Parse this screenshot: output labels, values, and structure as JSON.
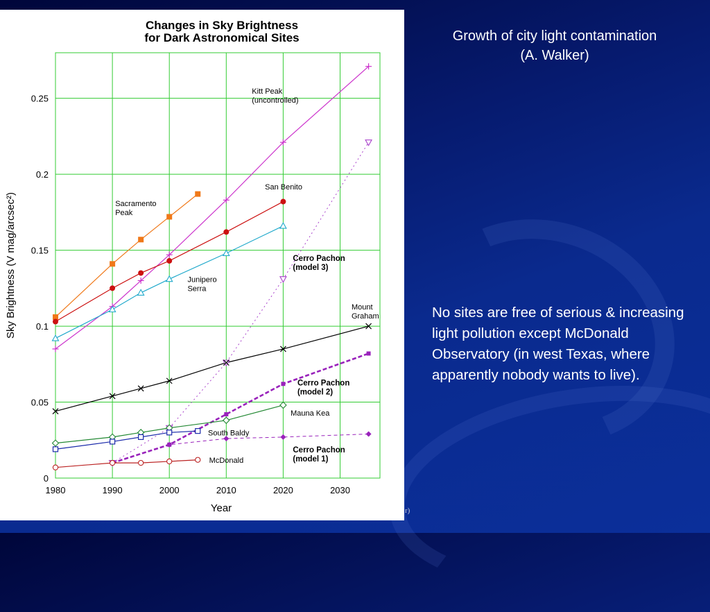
{
  "slide": {
    "title": "Growth of city light contamination (A. Walker)",
    "note": "No sites are free of serious & increasing light pollution except McDonald Observatory (in west Texas, where apparently nobody wants to live).",
    "stray": "r)"
  },
  "chart_data": {
    "type": "line",
    "title": [
      "Changes in Sky Brightness",
      "for Dark Astronomical Sites"
    ],
    "xlabel": "Year",
    "ylabel": "Sky Brightness (V mag/arcsec²)",
    "xlim": [
      1980,
      2037
    ],
    "ylim": [
      0,
      0.28
    ],
    "xticks": [
      1980,
      1990,
      2000,
      2010,
      2020,
      2030
    ],
    "yticks": [
      0,
      0.05,
      0.1,
      0.15,
      0.2,
      0.25
    ],
    "ytick_labels": [
      "0",
      "0.05",
      "0.1",
      "0.15",
      "0.2",
      "0.25"
    ],
    "grid": true,
    "grid_color": "#33cc33",
    "series": [
      {
        "name": "Sacramento Peak",
        "label_lines": [
          "Sacramento",
          "Peak"
        ],
        "color": "#f07818",
        "marker": "square-filled",
        "dash": "solid",
        "width": 1.2,
        "x": [
          1980,
          1990,
          1995,
          2000,
          2005
        ],
        "y": [
          0.106,
          0.141,
          0.157,
          0.172,
          0.187
        ],
        "label_at": [
          1990.5,
          0.179
        ],
        "label_bold": false
      },
      {
        "name": "Kitt Peak (uncontrolled)",
        "label_lines": [
          "Kitt Peak",
          "(uncontrolled)"
        ],
        "color": "#cc33cc",
        "marker": "plus",
        "dash": "solid",
        "width": 1.2,
        "x": [
          1980,
          1990,
          1995,
          2000,
          2010,
          2020,
          2035
        ],
        "y": [
          0.085,
          0.113,
          0.13,
          0.147,
          0.183,
          0.221,
          0.271
        ],
        "label_at": [
          2014.5,
          0.253
        ],
        "label_bold": false
      },
      {
        "name": "San Benito",
        "label_lines": [
          "San Benito"
        ],
        "color": "#cc1111",
        "marker": "circle-filled",
        "dash": "solid",
        "width": 1.2,
        "x": [
          1980,
          1990,
          1995,
          2000,
          2010,
          2020
        ],
        "y": [
          0.103,
          0.125,
          0.135,
          0.143,
          0.162,
          0.182
        ],
        "label_at": [
          2016.8,
          0.19
        ],
        "label_bold": false
      },
      {
        "name": "Junipero Serra",
        "label_lines": [
          "Junipero",
          "Serra"
        ],
        "color": "#22aacc",
        "marker": "triangle-open",
        "dash": "solid",
        "width": 1.2,
        "x": [
          1980,
          1990,
          1995,
          2000,
          2010,
          2020
        ],
        "y": [
          0.092,
          0.111,
          0.122,
          0.131,
          0.148,
          0.166
        ],
        "label_at": [
          2003.2,
          0.129
        ],
        "label_bold": false
      },
      {
        "name": "Cerro Pachon (model 3)",
        "label_lines": [
          "Cerro Pachon",
          "(model 3)"
        ],
        "color": "#aa44cc",
        "marker": "triangle-down-open",
        "dash": "dotted",
        "width": 1,
        "x": [
          1990,
          2000,
          2010,
          2020,
          2035
        ],
        "y": [
          0.01,
          0.033,
          0.076,
          0.131,
          0.221
        ],
        "label_at": [
          2021.7,
          0.143
        ],
        "label_bold": true
      },
      {
        "name": "Mount Graham",
        "label_lines": [
          "Mount",
          "Graham"
        ],
        "color": "#000000",
        "marker": "x",
        "dash": "solid",
        "width": 1.2,
        "x": [
          1980,
          1990,
          1995,
          2000,
          2010,
          2020,
          2035
        ],
        "y": [
          0.044,
          0.054,
          0.059,
          0.064,
          0.076,
          0.085,
          0.1
        ],
        "label_at": [
          2032.0,
          0.111
        ],
        "label_bold": false
      },
      {
        "name": "Cerro Pachon (model 2)",
        "label_lines": [
          "Cerro Pachon",
          "(model 2)"
        ],
        "color": "#9922bb",
        "marker": "square-filled-small",
        "dash": "dashed-bold",
        "width": 2.6,
        "x": [
          1990,
          2000,
          2010,
          2020,
          2035
        ],
        "y": [
          0.01,
          0.022,
          0.042,
          0.062,
          0.082
        ],
        "label_at": [
          2022.5,
          0.061
        ],
        "label_bold": true
      },
      {
        "name": "Mauna Kea",
        "label_lines": [
          "Mauna Kea"
        ],
        "color": "#228833",
        "marker": "diamond-open",
        "dash": "solid",
        "width": 1.2,
        "x": [
          1980,
          1990,
          1995,
          2000,
          2010,
          2020
        ],
        "y": [
          0.023,
          0.027,
          0.03,
          0.033,
          0.038,
          0.048
        ],
        "label_at": [
          2021.3,
          0.041
        ],
        "label_bold": false
      },
      {
        "name": "South Baldy",
        "label_lines": [
          "South Baldy"
        ],
        "color": "#1a2aaa",
        "marker": "square-open",
        "dash": "solid",
        "width": 1.2,
        "x": [
          1980,
          1990,
          1995,
          2000,
          2005
        ],
        "y": [
          0.019,
          0.024,
          0.027,
          0.03,
          0.031
        ],
        "label_at": [
          2006.8,
          0.028
        ],
        "label_bold": false
      },
      {
        "name": "Cerro Pachon (model 1)",
        "label_lines": [
          "Cerro Pachon",
          "(model 1)"
        ],
        "color": "#9922bb",
        "marker": "diamond-filled",
        "dash": "dashed",
        "width": 1,
        "x": [
          1990,
          2000,
          2010,
          2020,
          2035
        ],
        "y": [
          0.01,
          0.022,
          0.026,
          0.027,
          0.029
        ],
        "label_at": [
          2021.7,
          0.017
        ],
        "label_bold": true
      },
      {
        "name": "McDonald",
        "label_lines": [
          "McDonald"
        ],
        "color": "#bb2222",
        "marker": "circle-open",
        "dash": "solid",
        "width": 1.2,
        "x": [
          1980,
          1990,
          1995,
          2000,
          2005
        ],
        "y": [
          0.007,
          0.01,
          0.01,
          0.011,
          0.012
        ],
        "label_at": [
          2007.0,
          0.01
        ],
        "label_bold": false
      }
    ]
  }
}
